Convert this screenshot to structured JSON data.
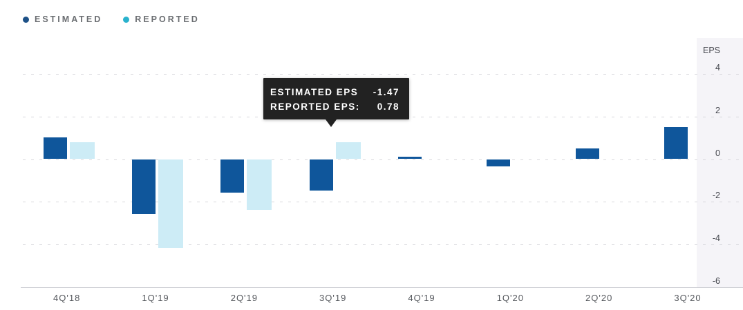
{
  "legend": {
    "items": [
      {
        "label": "ESTIMATED",
        "dot_color": "#1d5187"
      },
      {
        "label": "REPORTED",
        "dot_color": "#29b2cd"
      }
    ]
  },
  "tooltip": {
    "rows": [
      {
        "label": "ESTIMATED EPS",
        "value": "-1.47"
      },
      {
        "label": "REPORTED EPS:",
        "value": "0.78"
      }
    ],
    "bg_color": "#222222",
    "anchor_category": "3Q'19"
  },
  "chart_data": {
    "type": "bar",
    "title": "",
    "xlabel": "",
    "ylabel": "EPS",
    "categories": [
      "4Q'18",
      "1Q'19",
      "2Q'19",
      "3Q'19",
      "4Q'19",
      "1Q'20",
      "2Q'20",
      "3Q'20"
    ],
    "series": [
      {
        "name": "ESTIMATED",
        "color": "#0f569b",
        "values": [
          1.02,
          -2.57,
          -1.58,
          -1.47,
          0.1,
          -0.33,
          0.49,
          1.51
        ]
      },
      {
        "name": "REPORTED",
        "color": "#cdecf6",
        "values": [
          0.78,
          -4.17,
          -2.38,
          0.78,
          null,
          null,
          null,
          null
        ]
      }
    ],
    "yticks": [
      4,
      2,
      0,
      -2,
      -4,
      -6
    ],
    "ylim": [
      -6,
      5.7
    ],
    "grid": "dashed-horizontal",
    "legend_position": "top-left",
    "y_axis_side": "right"
  },
  "colors": {
    "estimated_bar": "#0f569b",
    "reported_bar": "#cdecf6",
    "axis_panel_bg": "#f5f4f8",
    "grid": "#d6d6db",
    "axis_line": "#cfd0d5"
  }
}
